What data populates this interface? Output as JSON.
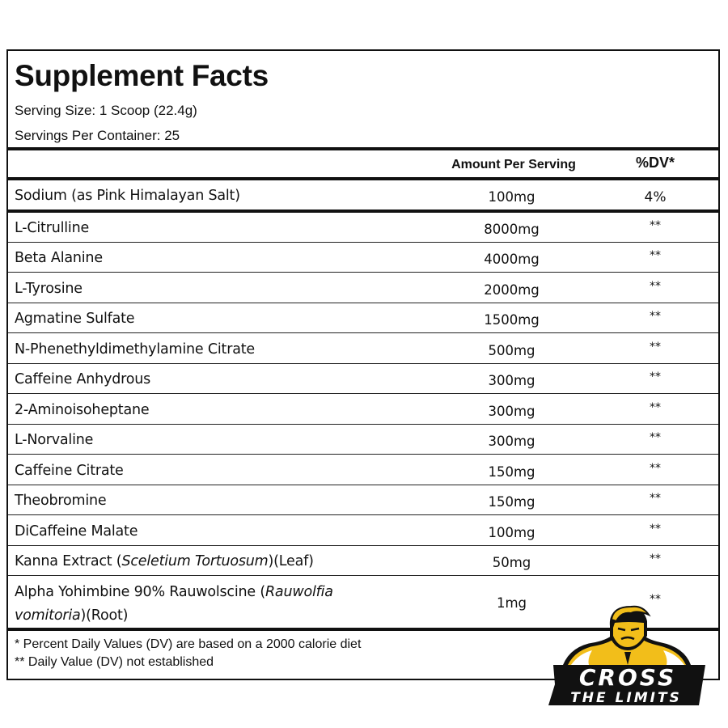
{
  "title": "Supplement Facts",
  "serving_size": "Serving Size: 1 Scoop (22.4g)",
  "servings_per_container": "Servings Per Container: 25",
  "header": {
    "amount": "Amount Per Serving",
    "dv": "%DV*"
  },
  "sodium": {
    "name": "Sodium (as Pink Himalayan Salt)",
    "amount": "100mg",
    "dv": "4%"
  },
  "ingredients": [
    {
      "name": "L-Citrulline",
      "amount": "8000mg",
      "dv": "**"
    },
    {
      "name": "Beta Alanine",
      "amount": "4000mg",
      "dv": "**"
    },
    {
      "name": "L-Tyrosine",
      "amount": "2000mg",
      "dv": "**"
    },
    {
      "name": "Agmatine Sulfate",
      "amount": "1500mg",
      "dv": "**"
    },
    {
      "name": "N-Phenethyldimethylamine Citrate",
      "amount": "500mg",
      "dv": "**"
    },
    {
      "name": "Caffeine Anhydrous",
      "amount": "300mg",
      "dv": "**"
    },
    {
      "name": "2-Aminoisoheptane",
      "amount": "300mg",
      "dv": "**"
    },
    {
      "name": "L-Norvaline",
      "amount": "300mg",
      "dv": "**"
    },
    {
      "name": "Caffeine Citrate",
      "amount": "150mg",
      "dv": "**"
    },
    {
      "name": "Theobromine",
      "amount": "150mg",
      "dv": "**"
    },
    {
      "name": "DiCaffeine Malate",
      "amount": "100mg",
      "dv": "**"
    }
  ],
  "kanna": {
    "name_a": "Kanna Extract (",
    "name_italic": "Sceletium Tortuosum",
    "name_b": ")(Leaf)",
    "amount": "50mg",
    "dv": "**"
  },
  "yohimbine": {
    "line1": "Alpha Yohimbine 90% Rauwolscine (",
    "line1_italic": "Rauwolfia",
    "line2_italic": "vomitoria",
    "line2": ")(Root)",
    "amount": "1mg",
    "dv": "**"
  },
  "footnotes": [
    "* Percent Daily Values (DV) are based on a 2000 calorie diet",
    "** Daily Value (DV) not established"
  ],
  "logo": {
    "line1": "CROSS",
    "line2": "THE LIMITS",
    "color": "#F2BE1A"
  }
}
